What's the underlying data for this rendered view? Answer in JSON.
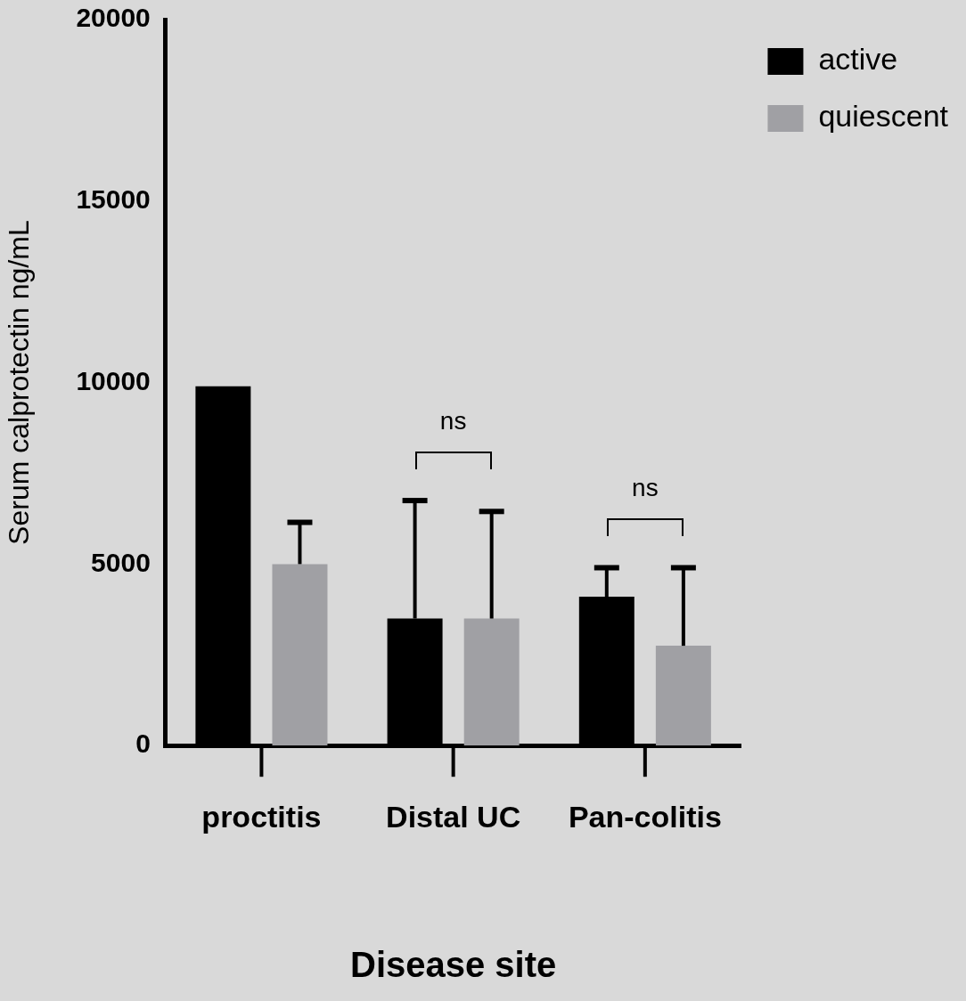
{
  "chart_data": {
    "type": "bar",
    "xlabel": "Disease site",
    "ylabel": "Serum calprotectin ng/mL",
    "categories": [
      "proctitis",
      "Distal UC",
      "Pan-colitis"
    ],
    "series": [
      {
        "name": "active",
        "color": "#000000",
        "values": [
          9900,
          3500,
          4100
        ],
        "errors": [
          null,
          [
            3500,
            6750
          ],
          [
            4100,
            4900
          ]
        ]
      },
      {
        "name": "quiescent",
        "color": "#a0a0a4",
        "values": [
          5000,
          3500,
          2750
        ],
        "errors": [
          [
            5000,
            6150
          ],
          [
            3500,
            6450
          ],
          [
            2750,
            4900
          ]
        ]
      }
    ],
    "ylim": [
      0,
      20000
    ],
    "yticks": [
      0,
      5000,
      10000,
      15000,
      20000
    ],
    "grid": false,
    "legend": "top right",
    "annotations": [
      "ns",
      "ns"
    ]
  }
}
